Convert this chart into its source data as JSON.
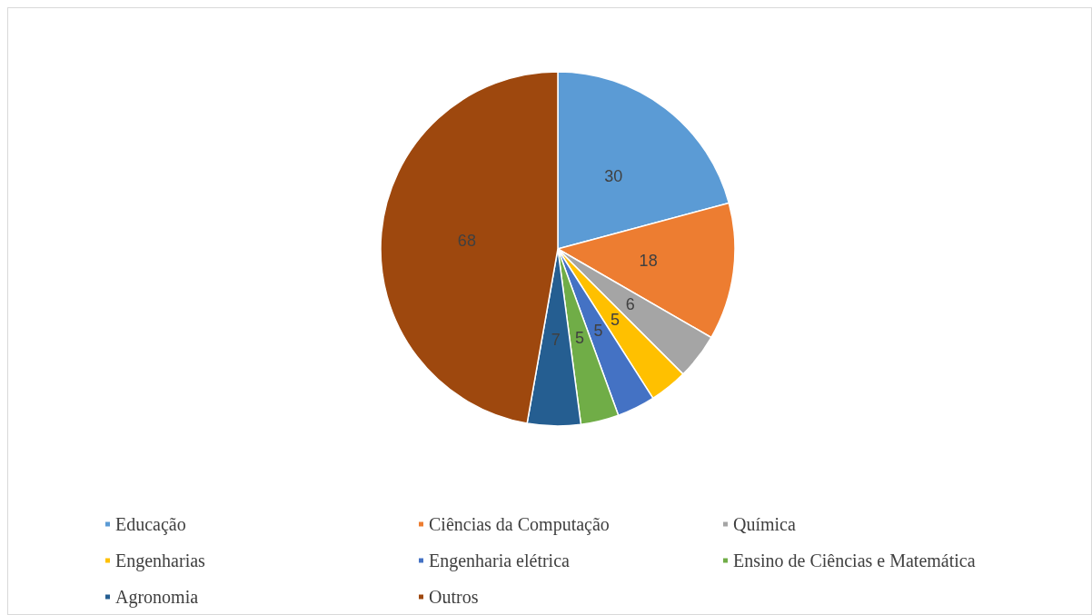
{
  "chart_data": {
    "type": "pie",
    "categories": [
      "Educação",
      "Ciências da Computação",
      "Química",
      "Engenharias",
      "Engenharia elétrica",
      "Ensino de Ciências e Matemática",
      "Agronomia",
      "Outros"
    ],
    "values": [
      30,
      18,
      6,
      5,
      5,
      5,
      7,
      68
    ],
    "colors": [
      "#5b9bd5",
      "#ed7d31",
      "#a5a5a5",
      "#ffc000",
      "#4472c4",
      "#70ad47",
      "#255e91",
      "#9e480e"
    ],
    "data_labels": true,
    "legend": "bottom"
  }
}
